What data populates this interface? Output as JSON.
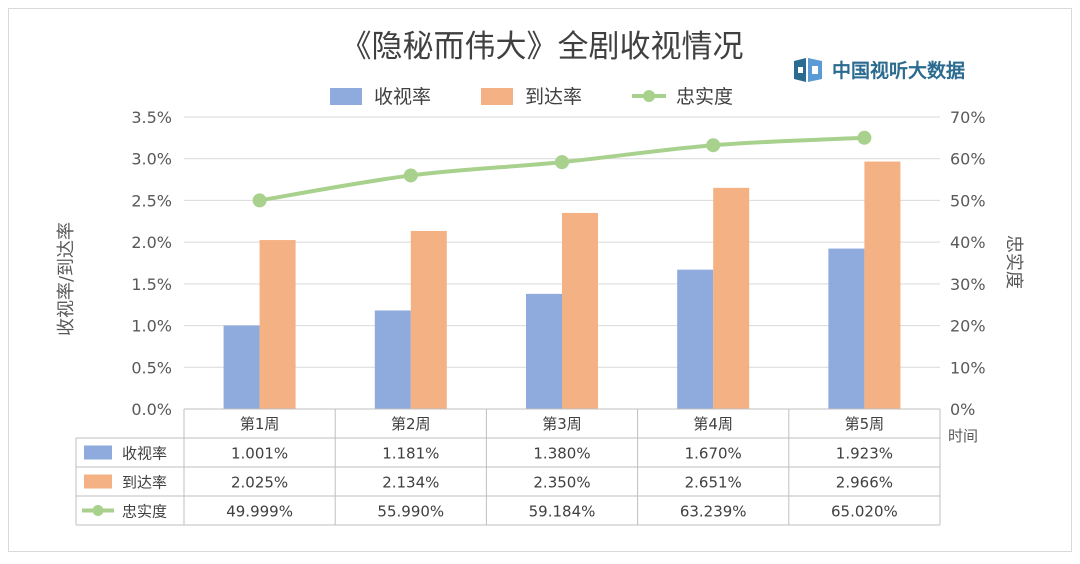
{
  "logo": {
    "text": "中国视听大数据",
    "icon": "tv-data-logo-icon"
  },
  "chart_data": {
    "type": "bar",
    "title": "《隐秘而伟大》全剧收视情况",
    "categories": [
      "第1周",
      "第2周",
      "第3周",
      "第4周",
      "第5周"
    ],
    "series": [
      {
        "name": "收视率",
        "kind": "bar",
        "axis": "left",
        "color": "#8faadc",
        "values": [
          1.001,
          1.181,
          1.38,
          1.67,
          1.923
        ],
        "table_values": [
          "1.001%",
          "1.181%",
          "1.380%",
          "1.670%",
          "1.923%"
        ]
      },
      {
        "name": "到达率",
        "kind": "bar",
        "axis": "left",
        "color": "#f4b183",
        "values": [
          2.025,
          2.134,
          2.35,
          2.651,
          2.966
        ],
        "table_values": [
          "2.025%",
          "2.134%",
          "2.350%",
          "2.651%",
          "2.966%"
        ]
      },
      {
        "name": "忠实度",
        "kind": "line",
        "axis": "right",
        "color": "#a9d18e",
        "values": [
          49.999,
          55.99,
          59.184,
          63.239,
          65.02
        ],
        "table_values": [
          "49.999%",
          "55.990%",
          "59.184%",
          "63.239%",
          "65.020%"
        ]
      }
    ],
    "ylabel": "收视率/到达率",
    "y2label": "忠实度",
    "xlabel": "时间",
    "ylim": [
      0,
      3.5
    ],
    "y2lim": [
      0,
      70
    ],
    "yticks": [
      "0.0%",
      "0.5%",
      "1.0%",
      "1.5%",
      "2.0%",
      "2.5%",
      "3.0%",
      "3.5%"
    ],
    "y2ticks": [
      "0%",
      "10%",
      "20%",
      "30%",
      "40%",
      "50%",
      "60%",
      "70%"
    ],
    "grid": true,
    "legend": "top-center",
    "data_table": true
  }
}
